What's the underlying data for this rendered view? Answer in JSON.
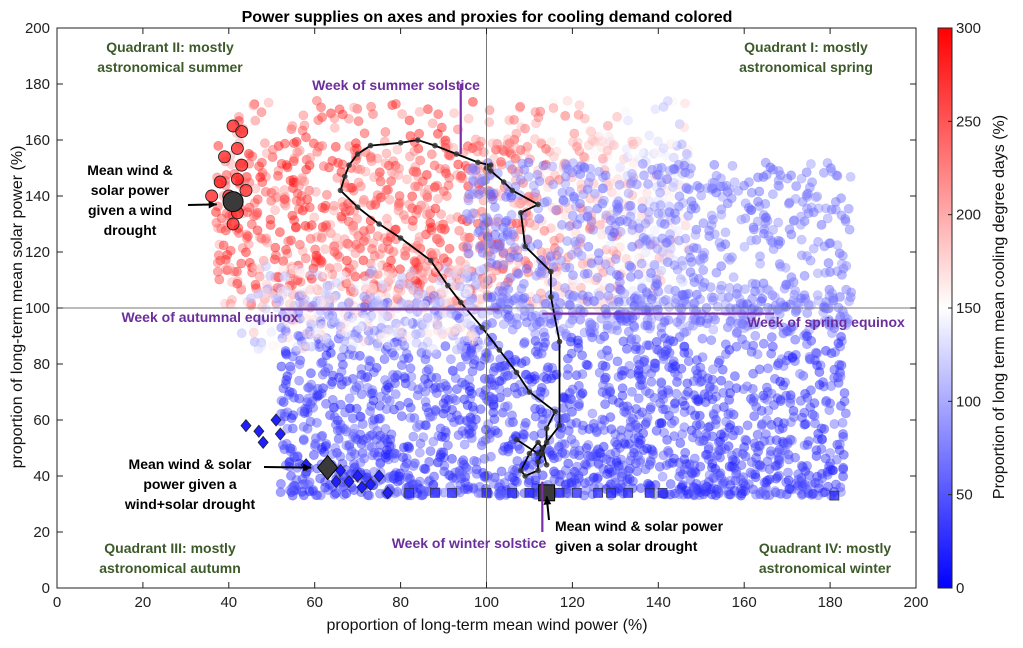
{
  "chart_data": {
    "type": "scatter",
    "title": "Power supplies on axes and proxies for cooling demand colored",
    "xlabel": "proportion of long-term mean wind power (%)",
    "ylabel": "proportion of long-term mean solar power (%)",
    "colorbar_label": "Proportion of long term mean cooling degree days (%)",
    "xlim": [
      0,
      200
    ],
    "ylim": [
      0,
      200
    ],
    "clim": [
      0,
      300
    ],
    "xticks": [
      "0",
      "20",
      "40",
      "60",
      "80",
      "100",
      "120",
      "140",
      "160",
      "180",
      "200"
    ],
    "yticks": [
      "0",
      "20",
      "40",
      "60",
      "80",
      "100",
      "120",
      "140",
      "160",
      "180",
      "200"
    ],
    "cticks": [
      "0",
      "50",
      "100",
      "150",
      "200",
      "250",
      "300"
    ],
    "colors": {
      "low": "#0000ff",
      "mid": "#ffffff",
      "high": "#ff0000",
      "path": "#000000",
      "week": "#7a2fa8",
      "quadrant": "#3d5a2a"
    },
    "reference_lines": {
      "x": 100,
      "y": 100
    },
    "quadrant_labels": [
      {
        "id": "q1",
        "lines": [
          "Quadrant I: mostly",
          "astronomical spring"
        ]
      },
      {
        "id": "q2",
        "lines": [
          "Quadrant II: mostly",
          "astronomical summer"
        ]
      },
      {
        "id": "q3",
        "lines": [
          "Quadrant III: mostly",
          "astronomical autumn"
        ]
      },
      {
        "id": "q4",
        "lines": [
          "Quadrant IV: mostly",
          "astronomical winter"
        ]
      }
    ],
    "week_markers": [
      {
        "id": "summer",
        "label": "Week of summer solstice",
        "line": {
          "x": [
            94,
            94
          ],
          "y": [
            155,
            180
          ]
        }
      },
      {
        "id": "autumn",
        "label": "Week of autumnal equinox",
        "line": {
          "x": [
            52,
            103
          ],
          "y": [
            99.5,
            99.5
          ]
        }
      },
      {
        "id": "spring",
        "label": "Week of spring equinox",
        "line": {
          "x": [
            113,
            167
          ],
          "y": [
            98,
            98
          ]
        }
      },
      {
        "id": "winter",
        "label": "Week of winter solstice",
        "line": {
          "x": [
            113,
            113
          ],
          "y": [
            20,
            38
          ]
        }
      }
    ],
    "annotations": [
      {
        "id": "wind-drought",
        "lines": [
          "Mean wind &",
          "solar power",
          "given a wind",
          "drought"
        ],
        "arrow_to": [
          40,
          137
        ]
      },
      {
        "id": "wind-solar-drought",
        "lines": [
          "Mean wind & solar",
          "power given a",
          "wind+solar drought"
        ],
        "arrow_to": [
          62,
          43
        ]
      },
      {
        "id": "solar-drought",
        "lines": [
          "Mean wind & solar power",
          "given a solar drought"
        ],
        "arrow_to": [
          114,
          37
        ]
      }
    ],
    "mean_points": [
      {
        "name": "wind drought",
        "x": 41,
        "y": 138,
        "marker": "circle"
      },
      {
        "name": "wind+solar drought",
        "x": 63,
        "y": 43,
        "marker": "diamond"
      },
      {
        "name": "solar drought",
        "x": 114,
        "y": 34,
        "marker": "square"
      }
    ],
    "wind_drought_points": [
      [
        41,
        165
      ],
      [
        42,
        157
      ],
      [
        43,
        151
      ],
      [
        42,
        146
      ],
      [
        40,
        140
      ],
      [
        38,
        145
      ],
      [
        36,
        140
      ],
      [
        42,
        134
      ],
      [
        41,
        130
      ],
      [
        44,
        142
      ],
      [
        39,
        154
      ],
      [
        43,
        163
      ]
    ],
    "wind_solar_drought_points": [
      [
        44,
        58
      ],
      [
        47,
        56
      ],
      [
        51,
        60
      ],
      [
        52,
        55
      ],
      [
        48,
        52
      ],
      [
        58,
        44
      ],
      [
        66,
        42
      ],
      [
        68,
        38
      ],
      [
        70,
        40
      ],
      [
        73,
        37
      ],
      [
        75,
        40
      ],
      [
        77,
        34
      ],
      [
        65,
        38
      ],
      [
        71,
        36
      ]
    ],
    "solar_drought_points": [
      [
        82,
        34
      ],
      [
        88,
        34
      ],
      [
        92,
        34
      ],
      [
        100,
        34
      ],
      [
        106,
        34
      ],
      [
        110,
        34
      ],
      [
        114,
        34
      ],
      [
        117,
        34
      ],
      [
        121,
        34
      ],
      [
        126,
        34
      ],
      [
        133,
        34
      ],
      [
        138,
        34
      ],
      [
        141,
        34
      ],
      [
        129,
        34
      ],
      [
        181,
        33
      ]
    ],
    "outliers": [
      [
        43,
        91
      ],
      [
        181,
        78
      ],
      [
        183,
        55
      ],
      [
        178,
        57
      ]
    ],
    "weekly_path": {
      "x": [
        107,
        112,
        117,
        117,
        115,
        115,
        109,
        108,
        112,
        106,
        104,
        101,
        100,
        101,
        98,
        93,
        88,
        84,
        80,
        73,
        70,
        68,
        67,
        66,
        70,
        75,
        80,
        87,
        91,
        94,
        99,
        103,
        107,
        110,
        116,
        114,
        114,
        113,
        112,
        112,
        109,
        108,
        110,
        112,
        113,
        114
      ],
      "y": [
        53,
        48,
        58,
        88,
        104,
        113,
        122,
        134,
        137,
        142,
        145,
        149,
        150,
        151,
        152,
        155,
        158,
        160,
        159,
        158,
        155,
        151,
        147,
        142,
        136,
        130,
        125,
        117,
        108,
        102,
        93,
        85,
        77,
        70,
        63,
        57,
        52,
        48,
        45,
        42,
        40,
        42,
        48,
        52,
        50,
        44
      ]
    }
  }
}
